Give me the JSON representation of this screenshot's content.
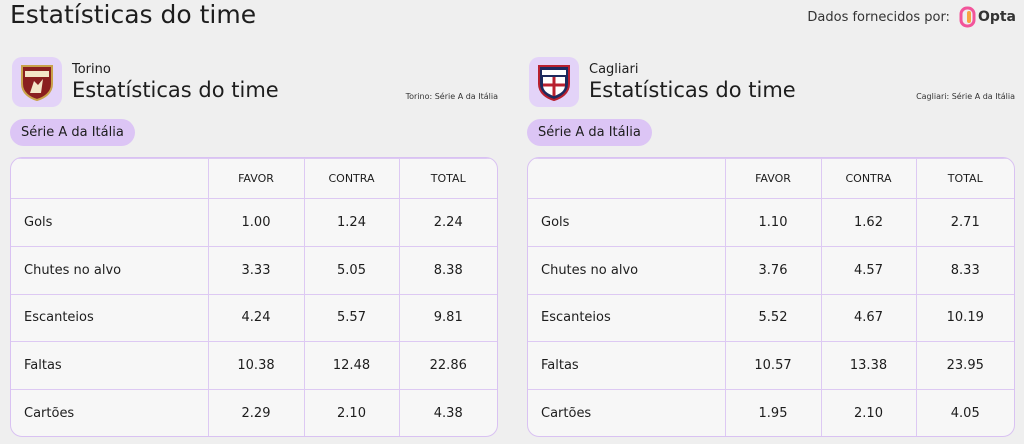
{
  "header": {
    "title": "Estatísticas do time",
    "provider_label": "Dados fornecidos por:",
    "provider": "Opta"
  },
  "panels": [
    {
      "team": "Torino",
      "title": "Estatísticas do time",
      "competition_note": "Torino: Série A da Itália",
      "competition": "Série A da Itália",
      "table": {
        "columns": [
          "FAVOR",
          "CONTRA",
          "TOTAL"
        ],
        "rows": [
          [
            "Gols",
            "1.00",
            "1.24",
            "2.24"
          ],
          [
            "Chutes no alvo",
            "3.33",
            "5.05",
            "8.38"
          ],
          [
            "Escanteios",
            "4.24",
            "5.57",
            "9.81"
          ],
          [
            "Faltas",
            "10.38",
            "12.48",
            "22.86"
          ],
          [
            "Cartões",
            "2.29",
            "2.10",
            "4.38"
          ]
        ]
      }
    },
    {
      "team": "Cagliari",
      "title": "Estatísticas do time",
      "competition_note": "Cagliari: Série A da Itália",
      "competition": "Série A da Itália",
      "table": {
        "columns": [
          "FAVOR",
          "CONTRA",
          "TOTAL"
        ],
        "rows": [
          [
            "Gols",
            "1.10",
            "1.62",
            "2.71"
          ],
          [
            "Chutes no alvo",
            "3.76",
            "4.57",
            "8.33"
          ],
          [
            "Escanteios",
            "5.52",
            "4.67",
            "10.19"
          ],
          [
            "Faltas",
            "10.57",
            "13.38",
            "23.95"
          ],
          [
            "Cartões",
            "1.95",
            "2.10",
            "4.05"
          ]
        ]
      }
    }
  ]
}
